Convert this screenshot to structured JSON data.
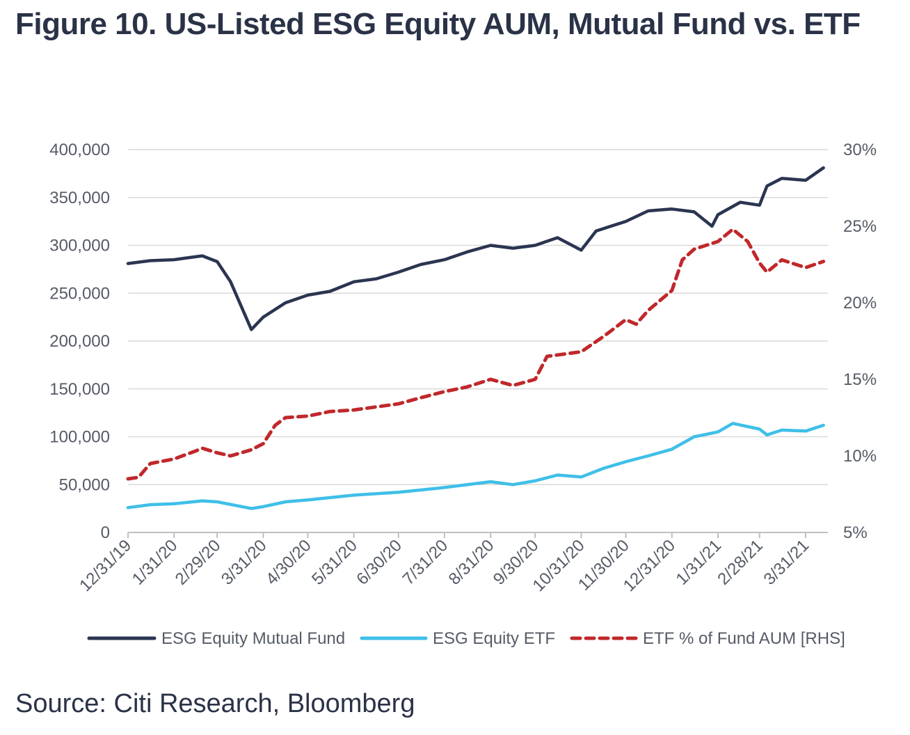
{
  "title": "Figure 10. US-Listed ESG Equity AUM, Mutual Fund vs. ETF",
  "source": "Source: Citi Research, Bloomberg",
  "colors": {
    "mutual_fund": "#2b3551",
    "etf": "#3fbfe8",
    "etf_pct": "#c0282b",
    "grid": "#d9d9d9",
    "axis": "#bfbfbf"
  },
  "chart_data": {
    "type": "line",
    "title": "Figure 10. US-Listed ESG Equity AUM, Mutual Fund vs. ETF",
    "x_tick_labels": [
      "12/31/19",
      "1/31/20",
      "2/29/20",
      "3/31/20",
      "4/30/20",
      "5/31/20",
      "6/30/20",
      "7/31/20",
      "8/31/20",
      "9/30/20",
      "10/31/20",
      "11/30/20",
      "12/31/20",
      "1/31/21",
      "2/28/21",
      "3/31/21"
    ],
    "y_left": {
      "range": [
        0,
        400000
      ],
      "tick_labels": [
        "0",
        "50,000",
        "100,000",
        "150,000",
        "200,000",
        "250,000",
        "300,000",
        "350,000",
        "400,000"
      ]
    },
    "y_right": {
      "range": [
        5,
        30
      ],
      "tick_labels": [
        "5%",
        "10%",
        "15%",
        "20%",
        "25%",
        "30%"
      ]
    },
    "grid": true,
    "legend_position": "bottom",
    "series": [
      {
        "name": "ESG Equity Mutual Fund",
        "axis": "left",
        "style": "solid",
        "x": [
          "12/31/19",
          "1/15/20",
          "1/31/20",
          "2/14/20",
          "2/19/20",
          "2/29/20",
          "3/9/20",
          "3/23/20",
          "3/31/20",
          "4/15/20",
          "4/30/20",
          "5/15/20",
          "5/31/20",
          "6/15/20",
          "6/30/20",
          "7/15/20",
          "7/31/20",
          "8/15/20",
          "8/31/20",
          "9/15/20",
          "9/30/20",
          "10/15/20",
          "10/31/20",
          "11/10/20",
          "11/30/20",
          "12/15/20",
          "12/31/20",
          "1/15/21",
          "1/27/21",
          "1/31/21",
          "2/15/21",
          "2/28/21",
          "3/5/21",
          "3/15/21",
          "3/31/21",
          "4/12/21"
        ],
        "y": [
          281000,
          284000,
          285000,
          288000,
          289000,
          283000,
          262000,
          212000,
          225000,
          240000,
          248000,
          252000,
          262000,
          265000,
          272000,
          280000,
          285000,
          293000,
          300000,
          297000,
          300000,
          308000,
          295000,
          315000,
          325000,
          336000,
          338000,
          335000,
          320000,
          332000,
          345000,
          342000,
          362000,
          370000,
          368000,
          381000
        ]
      },
      {
        "name": "ESG Equity ETF",
        "axis": "left",
        "style": "solid",
        "x": [
          "12/31/19",
          "1/15/20",
          "1/31/20",
          "2/19/20",
          "2/29/20",
          "3/23/20",
          "3/31/20",
          "4/15/20",
          "4/30/20",
          "5/31/20",
          "6/30/20",
          "7/31/20",
          "8/31/20",
          "9/15/20",
          "9/30/20",
          "10/15/20",
          "10/31/20",
          "11/15/20",
          "11/30/20",
          "12/15/20",
          "12/31/20",
          "1/15/21",
          "1/31/21",
          "2/10/21",
          "2/28/21",
          "3/5/21",
          "3/15/21",
          "3/31/21",
          "4/12/21"
        ],
        "y": [
          26000,
          29000,
          30000,
          33000,
          32000,
          25000,
          27000,
          32000,
          34000,
          39000,
          42000,
          47000,
          53000,
          50000,
          54000,
          60000,
          58000,
          67000,
          74000,
          80000,
          87000,
          100000,
          105000,
          114000,
          108000,
          102000,
          107000,
          106000,
          112000
        ]
      },
      {
        "name": "ETF % of Fund AUM [RHS]",
        "axis": "right",
        "style": "dashed",
        "x": [
          "12/31/19",
          "1/7/20",
          "1/15/20",
          "1/31/20",
          "2/14/20",
          "2/19/20",
          "2/29/20",
          "3/9/20",
          "3/23/20",
          "3/31/20",
          "4/8/20",
          "4/15/20",
          "4/30/20",
          "5/15/20",
          "5/31/20",
          "6/15/20",
          "6/30/20",
          "7/15/20",
          "7/31/20",
          "8/15/20",
          "8/31/20",
          "9/15/20",
          "9/30/20",
          "10/8/20",
          "10/31/20",
          "11/15/20",
          "11/30/20",
          "12/7/20",
          "12/15/20",
          "12/31/20",
          "1/7/21",
          "1/15/21",
          "1/31/21",
          "2/10/21",
          "2/20/21",
          "2/28/21",
          "3/5/21",
          "3/15/21",
          "3/31/21",
          "4/12/21"
        ],
        "y": [
          8.5,
          8.6,
          9.5,
          9.8,
          10.3,
          10.5,
          10.2,
          10.0,
          10.4,
          10.8,
          12.0,
          12.5,
          12.6,
          12.9,
          13.0,
          13.2,
          13.4,
          13.8,
          14.2,
          14.5,
          15.0,
          14.6,
          15.0,
          16.5,
          16.8,
          17.8,
          18.9,
          18.6,
          19.5,
          20.8,
          22.8,
          23.5,
          24.0,
          24.8,
          24.0,
          22.6,
          22.0,
          22.8,
          22.3,
          22.7
        ]
      }
    ]
  },
  "legend": [
    {
      "label": "ESG Equity Mutual Fund",
      "series": 0
    },
    {
      "label": "ESG Equity ETF",
      "series": 1
    },
    {
      "label": "ETF % of Fund AUM [RHS]",
      "series": 2
    }
  ]
}
